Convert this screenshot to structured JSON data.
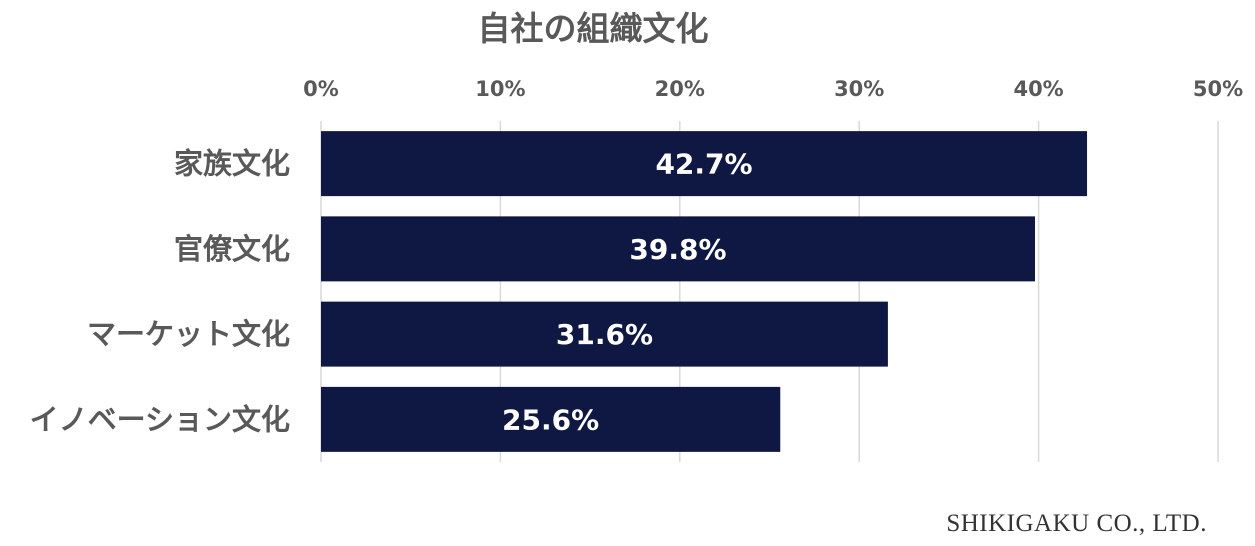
{
  "chart_data": {
    "type": "bar",
    "orientation": "horizontal",
    "title": "自社の組織文化",
    "categories": [
      "家族文化",
      "官僚文化",
      "マーケット文化",
      "イノベーション文化"
    ],
    "values": [
      42.7,
      39.8,
      31.6,
      25.6
    ],
    "data_labels": [
      "42.7%",
      "39.8%",
      "31.6%",
      "25.6%"
    ],
    "xlim": [
      0,
      50
    ],
    "x_ticks": [
      0,
      10,
      20,
      30,
      40,
      50
    ],
    "x_tick_labels": [
      "0%",
      "10%",
      "20%",
      "30%",
      "40%",
      "50%"
    ],
    "x_axis_position": "top",
    "grid": true,
    "bar_color": "#0f1743"
  },
  "footer": {
    "credit": "SHIKIGAKU CO., LTD."
  }
}
